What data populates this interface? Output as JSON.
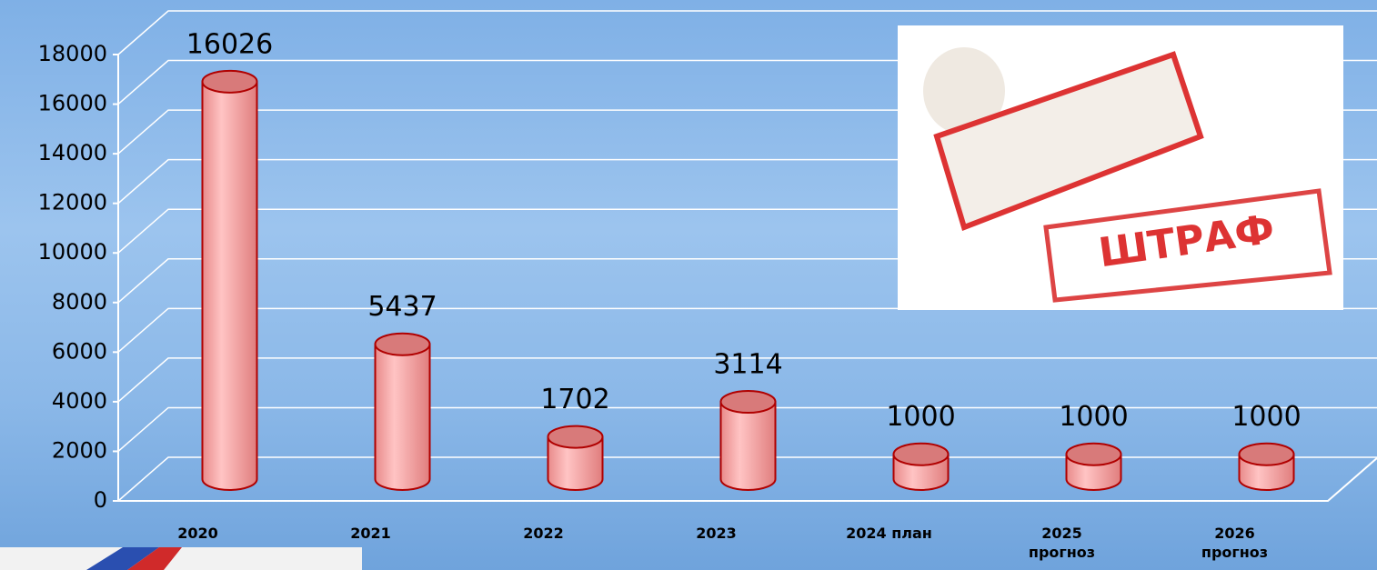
{
  "chart_data": {
    "type": "bar",
    "categories": [
      "2020",
      "2021",
      "2022",
      "2023",
      "2024  план",
      "2025 прогноз",
      "2026 прогноз"
    ],
    "values": [
      16026,
      5437,
      1702,
      3114,
      1000,
      1000,
      1000
    ],
    "color": "#f4a0a0",
    "ylim": [
      0,
      18000
    ],
    "yticks": [
      0,
      2000,
      4000,
      6000,
      8000,
      10000,
      12000,
      14000,
      16000,
      18000
    ],
    "grid": true
  },
  "image": {
    "stamp_text": "ШТРАФ"
  }
}
